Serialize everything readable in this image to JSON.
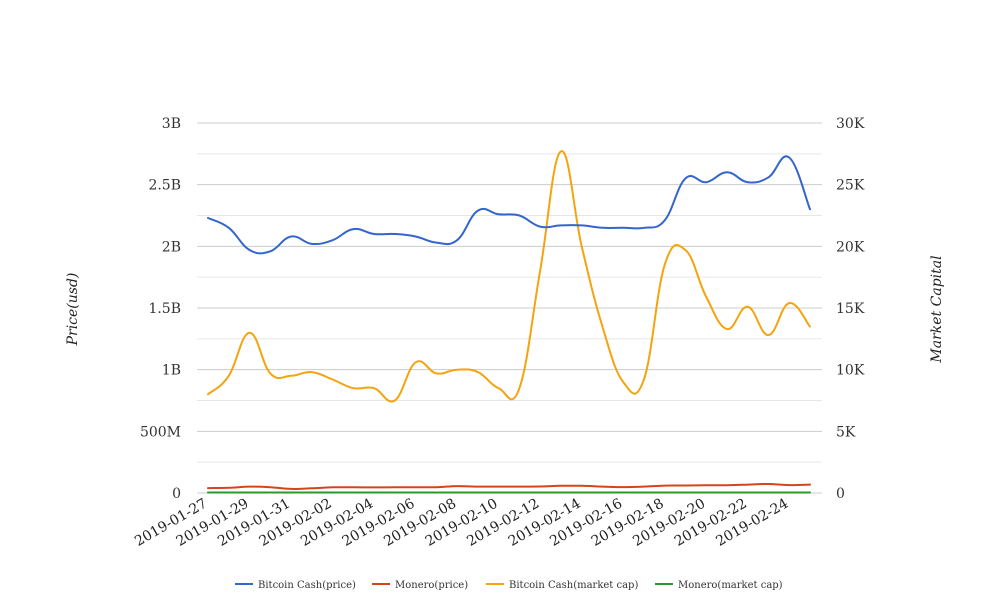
{
  "chart_data": {
    "type": "line",
    "x": [
      "2019-01-27",
      "2019-01-28",
      "2019-01-29",
      "2019-01-30",
      "2019-01-31",
      "2019-02-01",
      "2019-02-02",
      "2019-02-03",
      "2019-02-04",
      "2019-02-05",
      "2019-02-06",
      "2019-02-07",
      "2019-02-08",
      "2019-02-09",
      "2019-02-10",
      "2019-02-11",
      "2019-02-12",
      "2019-02-13",
      "2019-02-14",
      "2019-02-15",
      "2019-02-16",
      "2019-02-17",
      "2019-02-18",
      "2019-02-19",
      "2019-02-20",
      "2019-02-21",
      "2019-02-22",
      "2019-02-23",
      "2019-02-24",
      "2019-02-25"
    ],
    "x_tick_labels": [
      "2019-01-27",
      "2019-01-29",
      "2019-01-31",
      "2019-02-02",
      "2019-02-04",
      "2019-02-06",
      "2019-02-08",
      "2019-02-10",
      "2019-02-12",
      "2019-02-14",
      "2019-02-16",
      "2019-02-18",
      "2019-02-20",
      "2019-02-22",
      "2019-02-24"
    ],
    "y_left": {
      "label": "Price(usd)",
      "ylim": [
        0,
        3000000000
      ],
      "ticks": [
        "0",
        "500M",
        "1B",
        "1.5B",
        "2B",
        "2.5B",
        "3B"
      ]
    },
    "y_right": {
      "label": "Market Capital",
      "ylim": [
        0,
        30000
      ],
      "ticks": [
        "0",
        "5K",
        "10K",
        "15K",
        "20K",
        "25K",
        "30K"
      ]
    },
    "grid": true,
    "legend_position": "bottom",
    "series": [
      {
        "name": "Bitcoin Cash(price)",
        "axis": "left",
        "color": "#3366cc",
        "values": [
          2230000000,
          2150000000,
          1970000000,
          1960000000,
          2080000000,
          2020000000,
          2050000000,
          2140000000,
          2100000000,
          2100000000,
          2080000000,
          2030000000,
          2050000000,
          2290000000,
          2260000000,
          2250000000,
          2160000000,
          2170000000,
          2170000000,
          2150000000,
          2150000000,
          2150000000,
          2210000000,
          2550000000,
          2520000000,
          2600000000,
          2520000000,
          2560000000,
          2720000000,
          2300000000
        ]
      },
      {
        "name": "Monero(price)",
        "axis": "left",
        "color": "#d6441b",
        "values": [
          40000000,
          42000000,
          52000000,
          47000000,
          33000000,
          38000000,
          46000000,
          46000000,
          45000000,
          46000000,
          47000000,
          47000000,
          56000000,
          52000000,
          52000000,
          52000000,
          53000000,
          58000000,
          58000000,
          52000000,
          48000000,
          52000000,
          60000000,
          61000000,
          63000000,
          63000000,
          68000000,
          73000000,
          64000000,
          68000000
        ]
      },
      {
        "name": "Bitcoin Cash(market cap)",
        "axis": "right",
        "color": "#f5a30f",
        "values": [
          8000,
          9500,
          13000,
          9700,
          9500,
          9800,
          9200,
          8500,
          8500,
          7500,
          10600,
          9700,
          10000,
          9800,
          8500,
          8500,
          18000,
          27700,
          20000,
          13500,
          9000,
          9200,
          18500,
          19700,
          15900,
          13300,
          15100,
          12800,
          15400,
          13500
        ]
      },
      {
        "name": "Monero(market cap)",
        "axis": "right",
        "color": "#2a9a2a",
        "values": [
          40,
          40,
          40,
          40,
          40,
          40,
          40,
          40,
          40,
          40,
          40,
          40,
          40,
          40,
          40,
          40,
          40,
          40,
          40,
          40,
          40,
          40,
          40,
          40,
          40,
          40,
          40,
          40,
          40,
          40
        ]
      }
    ]
  }
}
